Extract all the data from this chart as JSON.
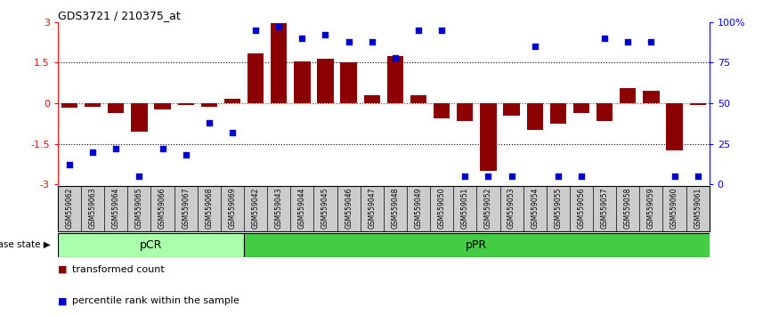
{
  "title": "GDS3721 / 210375_at",
  "samples": [
    "GSM559062",
    "GSM559063",
    "GSM559064",
    "GSM559065",
    "GSM559066",
    "GSM559067",
    "GSM559068",
    "GSM559069",
    "GSM559042",
    "GSM559043",
    "GSM559044",
    "GSM559045",
    "GSM559046",
    "GSM559047",
    "GSM559048",
    "GSM559049",
    "GSM559050",
    "GSM559051",
    "GSM559052",
    "GSM559053",
    "GSM559054",
    "GSM559055",
    "GSM559056",
    "GSM559057",
    "GSM559058",
    "GSM559059",
    "GSM559060",
    "GSM559061"
  ],
  "bar_values": [
    -0.18,
    -0.12,
    -0.35,
    -1.05,
    -0.22,
    -0.08,
    -0.12,
    0.15,
    1.85,
    2.95,
    1.55,
    1.65,
    1.5,
    0.3,
    1.75,
    0.3,
    -0.55,
    -0.65,
    -2.5,
    -0.45,
    -1.0,
    -0.75,
    -0.38,
    -0.65,
    0.55,
    0.45,
    -1.75,
    -0.08
  ],
  "dot_values_pct": [
    12,
    20,
    22,
    5,
    22,
    18,
    38,
    32,
    95,
    97,
    90,
    92,
    88,
    88,
    78,
    95,
    95,
    5,
    5,
    5,
    85,
    5,
    5,
    90,
    88,
    88,
    5,
    5
  ],
  "pcr_count": 8,
  "ppr_count": 20,
  "bar_color": "#8B0000",
  "dot_color": "#0000CC",
  "ylim": [
    -3,
    3
  ],
  "yticks_left": [
    -3,
    -1.5,
    0,
    1.5,
    3
  ],
  "ytick_labels_left": [
    "-3",
    "-1.5",
    "0",
    "1.5",
    "3"
  ],
  "ylabel_right_ticks": [
    0,
    25,
    50,
    75,
    100
  ],
  "hline_zero_color": "red",
  "hline_other_color": "black",
  "background_label": "#CCCCCC",
  "pcr_color": "#AAFFAA",
  "ppr_color": "#44CC44",
  "legend_items": [
    "transformed count",
    "percentile rank within the sample"
  ]
}
